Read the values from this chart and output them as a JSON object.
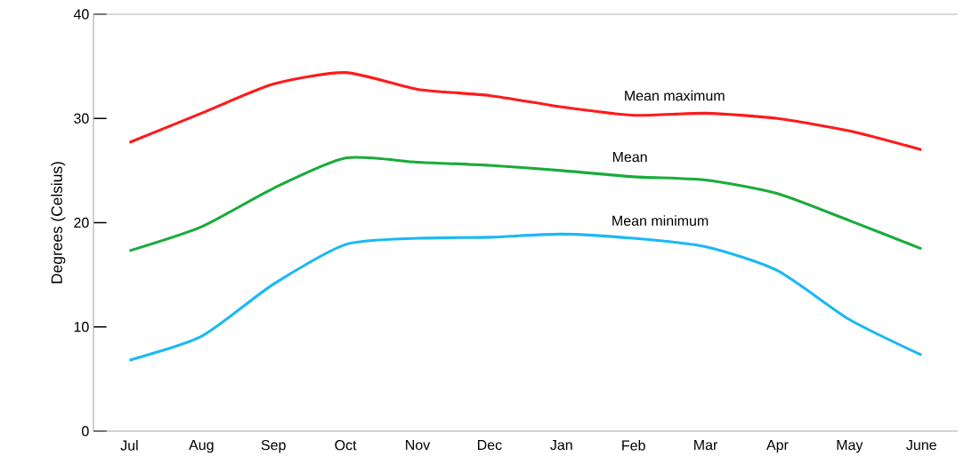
{
  "chart_data": {
    "type": "line",
    "ylabel": "Degrees (Celsius)",
    "categories": [
      "Jul",
      "Aug",
      "Sep",
      "Oct",
      "Nov",
      "Dec",
      "Jan",
      "Feb",
      "Mar",
      "Apr",
      "May",
      "June"
    ],
    "series": [
      {
        "name": "Mean maximum",
        "color": "#ff1a1a",
        "values": [
          27.7,
          30.5,
          33.3,
          34.4,
          32.8,
          32.2,
          31.1,
          30.3,
          30.5,
          30.0,
          28.8,
          27.0
        ]
      },
      {
        "name": "Mean",
        "color": "#1aab3a",
        "values": [
          17.3,
          19.6,
          23.3,
          26.2,
          25.8,
          25.5,
          25.0,
          24.4,
          24.1,
          22.8,
          20.2,
          17.5
        ]
      },
      {
        "name": "Mean minimum",
        "color": "#1ab8f5",
        "values": [
          6.8,
          9.1,
          14.1,
          17.9,
          18.5,
          18.6,
          18.9,
          18.5,
          17.7,
          15.4,
          10.7,
          7.3
        ]
      }
    ],
    "ylim": [
      0,
      40
    ],
    "yticks": [
      0,
      10,
      20,
      30,
      40
    ],
    "grid": false,
    "marker": "none",
    "line_style": "solid"
  }
}
